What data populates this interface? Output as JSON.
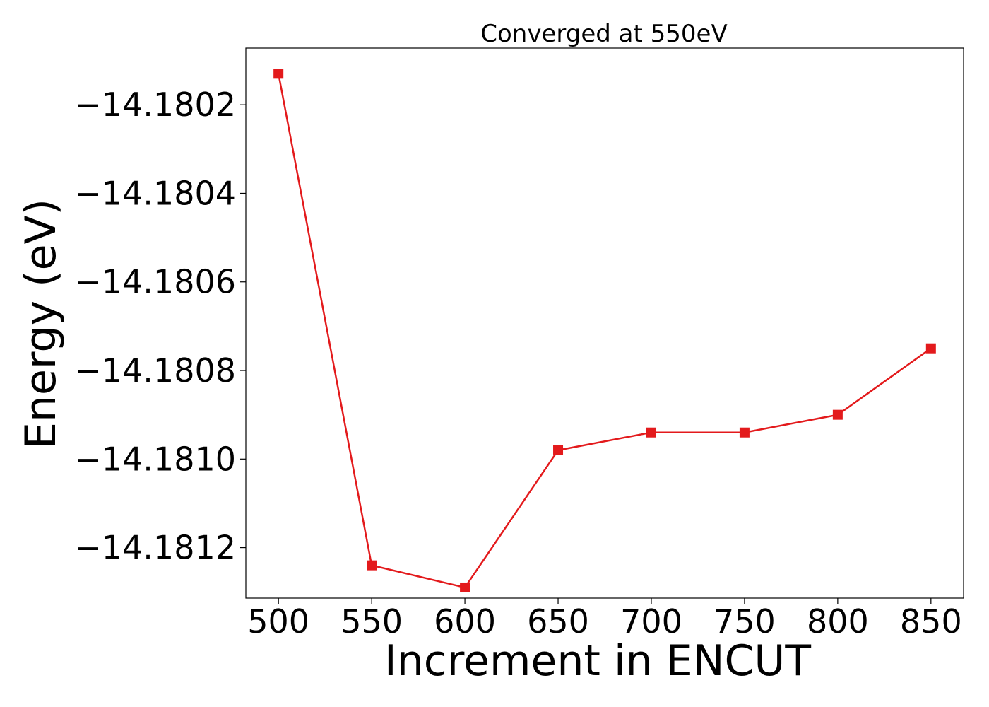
{
  "chart_data": {
    "type": "line",
    "title": "Converged at 550eV",
    "xlabel": "Increment in ENCUT",
    "ylabel": "Energy (eV)",
    "x": [
      500,
      550,
      600,
      650,
      700,
      750,
      800,
      850
    ],
    "series": [
      {
        "values": [
          -14.18013,
          -14.18124,
          -14.18129,
          -14.18098,
          -14.18094,
          -14.18094,
          -14.1809,
          -14.18075
        ],
        "color": "#e31a1c",
        "marker": "square"
      }
    ],
    "xticks": [
      500,
      550,
      600,
      650,
      700,
      750,
      800,
      850
    ],
    "xtick_labels": [
      "500",
      "550",
      "600",
      "650",
      "700",
      "750",
      "800",
      "850"
    ],
    "yticks": [
      -14.1812,
      -14.181,
      -14.1808,
      -14.1806,
      -14.1804,
      -14.1802
    ],
    "ytick_labels": [
      "−14.1812",
      "−14.1810",
      "−14.1808",
      "−14.1806",
      "−14.1804",
      "−14.1802"
    ],
    "xlim": [
      482.5,
      867.5
    ],
    "ylim": [
      -14.181314,
      -14.180072
    ],
    "grid": false,
    "legend": "none"
  }
}
